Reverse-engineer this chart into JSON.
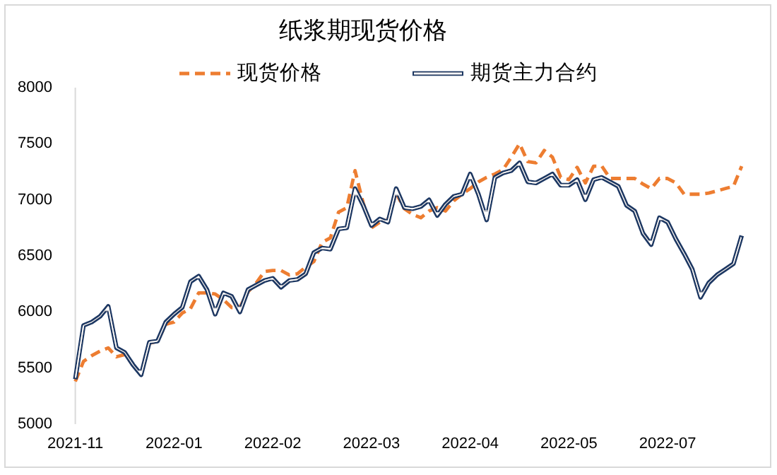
{
  "chart_data": {
    "type": "line",
    "title": "纸浆期现货价格",
    "categories": [
      "2021-11",
      null,
      null,
      null,
      null,
      null,
      null,
      null,
      null,
      null,
      null,
      null,
      "2022-01",
      null,
      null,
      null,
      null,
      null,
      null,
      null,
      null,
      null,
      null,
      null,
      "2022-02",
      null,
      null,
      null,
      null,
      null,
      null,
      null,
      null,
      null,
      null,
      null,
      "2022-03",
      null,
      null,
      null,
      null,
      null,
      null,
      null,
      null,
      null,
      null,
      null,
      "2022-04",
      null,
      null,
      null,
      null,
      null,
      null,
      null,
      null,
      null,
      null,
      null,
      "2022-05",
      null,
      null,
      null,
      null,
      null,
      null,
      null,
      null,
      null,
      null,
      null,
      "2022-07",
      null,
      null,
      null,
      null,
      null,
      null,
      null,
      null,
      null
    ],
    "series": [
      {
        "name": "现货价格",
        "color": "#ed7d31",
        "line_style": "dashed",
        "values": [
          5380,
          5560,
          5610,
          5650,
          5680,
          5600,
          5620,
          5530,
          5440,
          5720,
          5740,
          5890,
          5910,
          5990,
          6030,
          6170,
          6170,
          6160,
          6110,
          6040,
          6040,
          6180,
          6260,
          6360,
          6370,
          6370,
          6330,
          6340,
          6400,
          6450,
          6620,
          6660,
          6890,
          6930,
          7260,
          6970,
          6750,
          6800,
          6820,
          7060,
          6920,
          6870,
          6840,
          6900,
          6930,
          6900,
          6990,
          7050,
          7100,
          7160,
          7200,
          7230,
          7270,
          7380,
          7500,
          7340,
          7330,
          7440,
          7380,
          7200,
          7180,
          7290,
          7150,
          7300,
          7300,
          7190,
          7190,
          7190,
          7190,
          7140,
          7100,
          7190,
          7190,
          7150,
          7050,
          7050,
          7050,
          7060,
          7080,
          7100,
          7120,
          7300
        ]
      },
      {
        "name": "期货主力合约",
        "color": "#1f3864",
        "line_style": "solid",
        "values": [
          5400,
          5880,
          5910,
          5960,
          6050,
          5680,
          5640,
          5530,
          5440,
          5730,
          5740,
          5910,
          5980,
          6040,
          6270,
          6320,
          6200,
          5980,
          6170,
          6140,
          6000,
          6200,
          6240,
          6280,
          6300,
          6220,
          6280,
          6290,
          6340,
          6530,
          6570,
          6560,
          6740,
          6750,
          7100,
          6950,
          6770,
          6830,
          6800,
          7100,
          6930,
          6920,
          6940,
          7000,
          6860,
          6960,
          7030,
          7050,
          7230,
          7050,
          6820,
          7200,
          7240,
          7260,
          7330,
          7160,
          7150,
          7190,
          7230,
          7130,
          7130,
          7180,
          7000,
          7180,
          7200,
          7160,
          7120,
          6950,
          6900,
          6700,
          6600,
          6840,
          6800,
          6650,
          6520,
          6380,
          6130,
          6260,
          6330,
          6380,
          6430,
          6680
        ]
      }
    ],
    "ylim": [
      5000,
      8000
    ],
    "yticks": [
      5000,
      5500,
      6000,
      6500,
      7000,
      7500,
      8000
    ],
    "legend": "top"
  }
}
